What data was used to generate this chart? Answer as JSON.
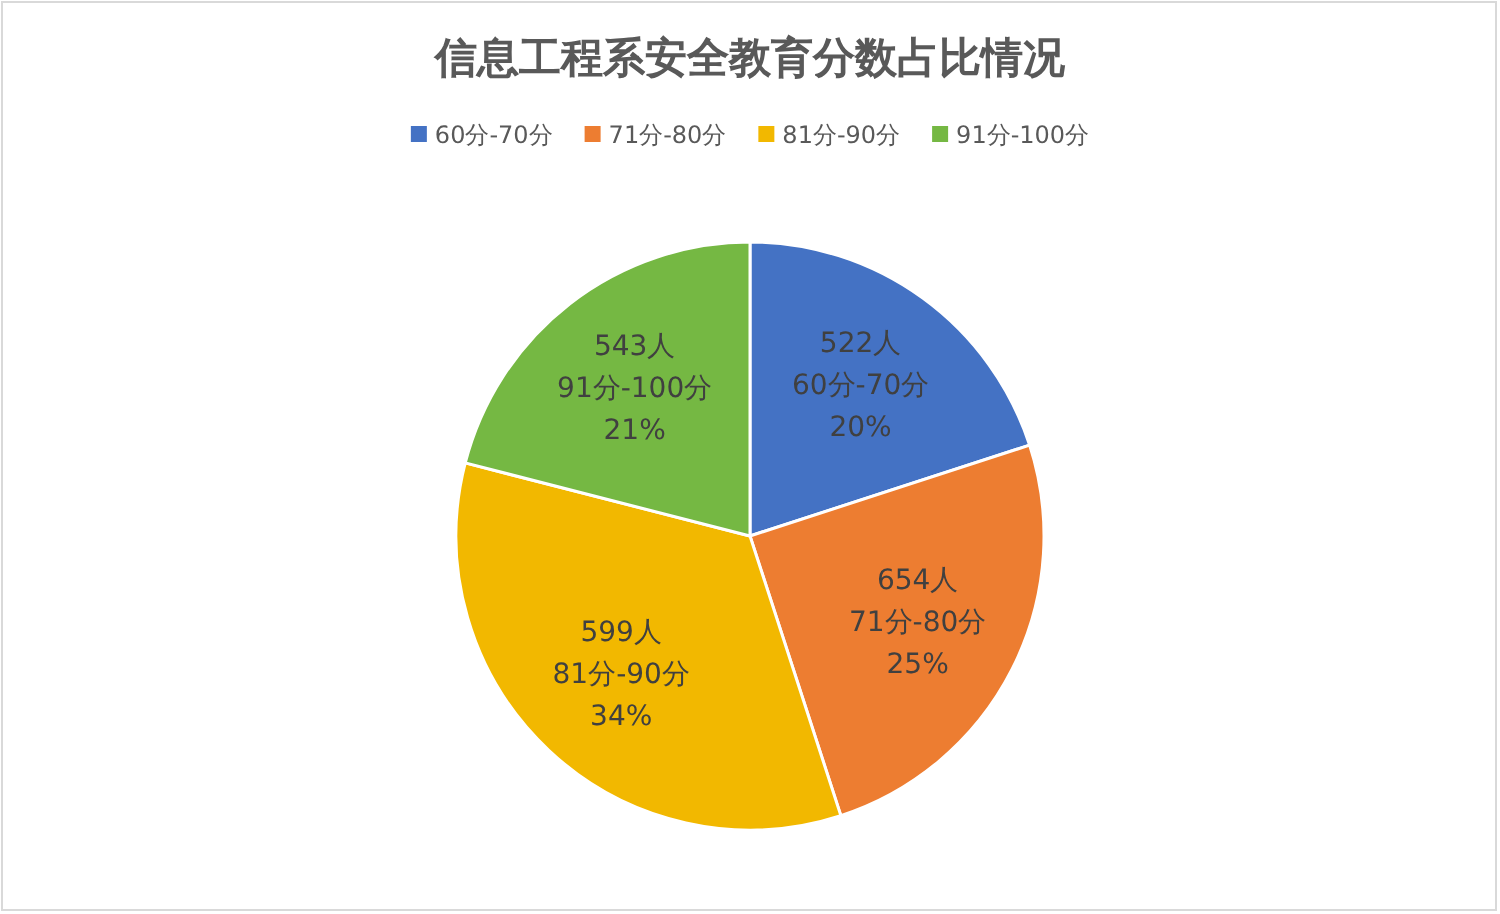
{
  "chart_data": {
    "type": "pie",
    "title": "信息工程系安全教育分数占比情况",
    "categories": [
      "60分-70分",
      "71分-80分",
      "81分-90分",
      "91分-100分"
    ],
    "values": [
      20,
      25,
      34,
      21
    ],
    "colors": [
      "#4472c4",
      "#ed7d31",
      "#f2b800",
      "#75b843"
    ],
    "value_labels": [
      "522人\n60分-70分\n20%",
      "654人\n71分-80分\n25%",
      "599人\n81分-90分\n34%",
      "543人\n91分-100分\n21%"
    ],
    "legend": "top"
  }
}
